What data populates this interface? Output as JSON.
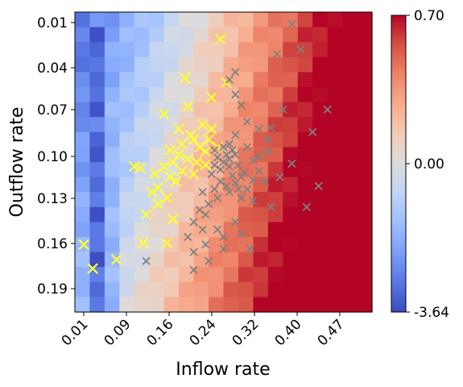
{
  "chart_data": {
    "type": "heatmap",
    "xlabel": "Inflow rate",
    "ylabel": "Outflow rate",
    "x_ticks": [
      "0.01",
      "0.09",
      "0.16",
      "0.24",
      "0.32",
      "0.40",
      "0.47"
    ],
    "y_ticks": [
      "0.01",
      "0.04",
      "0.07",
      "0.10",
      "0.13",
      "0.16",
      "0.19"
    ],
    "x_range": [
      0.0,
      0.5
    ],
    "y_range": [
      0.0,
      0.2
    ],
    "colorbar": {
      "colormap": "coolwarm",
      "min": -3.64,
      "center": 0.0,
      "max": 0.7,
      "tick_labels": [
        "0.70",
        "0.00",
        "-3.64"
      ]
    },
    "scatter_series": [
      {
        "marker": "x",
        "color": "#ffff33",
        "points": [
          [
            0.245,
            0.018
          ],
          [
            0.255,
            0.047
          ],
          [
            0.185,
            0.044
          ],
          [
            0.23,
            0.057
          ],
          [
            0.19,
            0.063
          ],
          [
            0.15,
            0.068
          ],
          [
            0.23,
            0.078
          ],
          [
            0.215,
            0.075
          ],
          [
            0.175,
            0.078
          ],
          [
            0.2,
            0.085
          ],
          [
            0.18,
            0.088
          ],
          [
            0.21,
            0.09
          ],
          [
            0.22,
            0.093
          ],
          [
            0.16,
            0.092
          ],
          [
            0.24,
            0.09
          ],
          [
            0.175,
            0.095
          ],
          [
            0.19,
            0.098
          ],
          [
            0.205,
            0.1
          ],
          [
            0.22,
            0.102
          ],
          [
            0.165,
            0.1
          ],
          [
            0.15,
            0.103
          ],
          [
            0.1,
            0.103
          ],
          [
            0.11,
            0.104
          ],
          [
            0.18,
            0.106
          ],
          [
            0.2,
            0.108
          ],
          [
            0.16,
            0.11
          ],
          [
            0.17,
            0.113
          ],
          [
            0.14,
            0.117
          ],
          [
            0.13,
            0.12
          ],
          [
            0.155,
            0.124
          ],
          [
            0.14,
            0.128
          ],
          [
            0.12,
            0.135
          ],
          [
            0.165,
            0.138
          ],
          [
            0.015,
            0.155
          ],
          [
            0.03,
            0.171
          ],
          [
            0.07,
            0.165
          ],
          [
            0.115,
            0.154
          ],
          [
            0.155,
            0.154
          ],
          [
            0.135,
            0.108
          ],
          [
            0.225,
            0.085
          ],
          [
            0.195,
            0.082
          ]
        ]
      },
      {
        "marker": "x",
        "color": "#808080",
        "points": [
          [
            0.365,
            0.008
          ],
          [
            0.34,
            0.028
          ],
          [
            0.38,
            0.025
          ],
          [
            0.27,
            0.04
          ],
          [
            0.26,
            0.045
          ],
          [
            0.27,
            0.055
          ],
          [
            0.28,
            0.062
          ],
          [
            0.35,
            0.065
          ],
          [
            0.425,
            0.065
          ],
          [
            0.29,
            0.073
          ],
          [
            0.31,
            0.078
          ],
          [
            0.33,
            0.077
          ],
          [
            0.4,
            0.08
          ],
          [
            0.27,
            0.082
          ],
          [
            0.26,
            0.088
          ],
          [
            0.325,
            0.085
          ],
          [
            0.29,
            0.09
          ],
          [
            0.235,
            0.092
          ],
          [
            0.27,
            0.095
          ],
          [
            0.31,
            0.096
          ],
          [
            0.325,
            0.093
          ],
          [
            0.25,
            0.1
          ],
          [
            0.26,
            0.103
          ],
          [
            0.245,
            0.105
          ],
          [
            0.23,
            0.108
          ],
          [
            0.28,
            0.11
          ],
          [
            0.27,
            0.114
          ],
          [
            0.3,
            0.112
          ],
          [
            0.32,
            0.113
          ],
          [
            0.345,
            0.11
          ],
          [
            0.365,
            0.101
          ],
          [
            0.29,
            0.118
          ],
          [
            0.26,
            0.12
          ],
          [
            0.24,
            0.124
          ],
          [
            0.225,
            0.128
          ],
          [
            0.28,
            0.124
          ],
          [
            0.3,
            0.126
          ],
          [
            0.33,
            0.13
          ],
          [
            0.41,
            0.116
          ],
          [
            0.39,
            0.13
          ],
          [
            0.22,
            0.135
          ],
          [
            0.2,
            0.14
          ],
          [
            0.24,
            0.145
          ],
          [
            0.27,
            0.14
          ],
          [
            0.28,
            0.148
          ],
          [
            0.25,
            0.15
          ],
          [
            0.22,
            0.155
          ],
          [
            0.25,
            0.158
          ],
          [
            0.2,
            0.16
          ],
          [
            0.225,
            0.166
          ],
          [
            0.2,
            0.172
          ],
          [
            0.12,
            0.166
          ],
          [
            0.295,
            0.158
          ],
          [
            0.31,
            0.106
          ],
          [
            0.3,
            0.099
          ],
          [
            0.255,
            0.095
          ],
          [
            0.275,
            0.102
          ],
          [
            0.285,
            0.107
          ],
          [
            0.265,
            0.109
          ],
          [
            0.245,
            0.113
          ],
          [
            0.255,
            0.116
          ],
          [
            0.235,
            0.118
          ],
          [
            0.215,
            0.12
          ],
          [
            0.26,
            0.098
          ],
          [
            0.25,
            0.09
          ],
          [
            0.24,
            0.097
          ],
          [
            0.265,
            0.092
          ],
          [
            0.235,
            0.102
          ],
          [
            0.275,
            0.118
          ],
          [
            0.215,
            0.145
          ],
          [
            0.19,
            0.15
          ],
          [
            0.21,
            0.132
          ]
        ]
      }
    ]
  }
}
